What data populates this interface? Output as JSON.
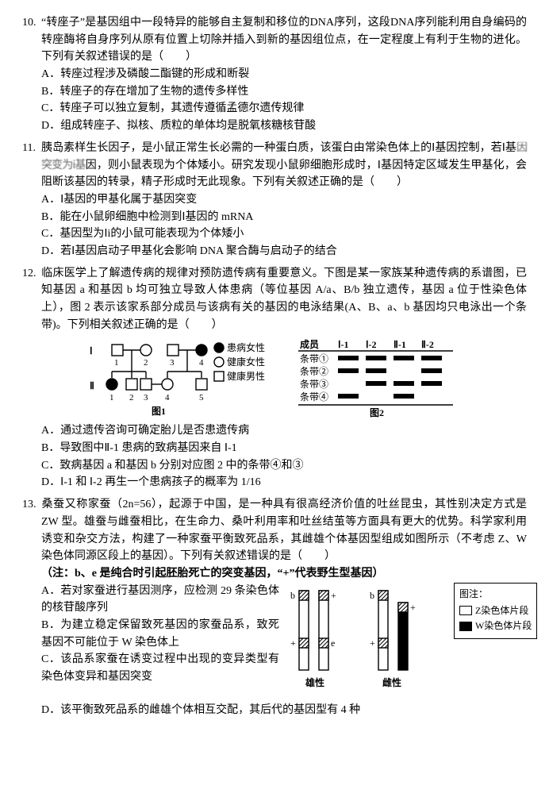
{
  "q10": {
    "num": "10.",
    "stem": "“转座子”是基因组中一段特异的能够自主复制和移位的DNA序列，这段DNA序列能利用自身编码的转座酶将自身序列从原有位置上切除并插入到新的基因组位点，在一定程度上有利于生物的进化。下列有关叙述错误的是（　　）",
    "A": "A．转座过程涉及磷酸二酯键的形成和断裂",
    "B": "B．转座子的存在增加了生物的遗传多样性",
    "C": "C．转座子可以独立复制，其遗传遵循孟德尔遗传规律",
    "D": "D．组成转座子、拟核、质粒的单体均是脱氧核糖核苷酸"
  },
  "q11": {
    "num": "11.",
    "stem_a": "胰岛素样生长因子，是小鼠正常生长必需的一种蛋白质，该蛋白由常染色体上的Ⅰ基因控制，若Ⅰ基",
    "stem_smudge": "因突变为ⅰ基",
    "stem_b": "因，则小鼠表现为个体矮小。研究发现小鼠卵细胞形成时，Ⅰ基因特定区域发生甲基化，会阻断该基因的转录，精子形成时无此现象。下列有关叙述正确的是（　　）",
    "A": "A．Ⅰ基因的甲基化属于基因突变",
    "B": "B．能在小鼠卵细胞中检测到Ⅰ基因的 mRNA",
    "C": "C．基因型为Ⅰi的小鼠可能表现为个体矮小",
    "D": "D．若Ⅰ基因启动子甲基化会影响 DNA 聚合酶与启动子的结合"
  },
  "q12": {
    "num": "12.",
    "stem": "临床医学上了解遗传病的规律对预防遗传病有重要意义。下图是某一家族某种遗传病的系谱图，已知基因 a 和基因 b 均可独立导致人体患病（等位基因 A/a、B/b 独立遗传，基因 a 位于性染色体上），图 2 表示该家系部分成员与该病有关的基因的电泳结果(A、B、a、b 基因均只电泳出一个条带)。下列相关叙述正确的是（　　）",
    "fig1_labels": {
      "I": "Ⅰ",
      "II": "Ⅱ",
      "aff_f": "患病女性",
      "norm_f": "健康女性",
      "norm_m": "健康男性",
      "cap": "图1"
    },
    "fig2": {
      "header": [
        "成员",
        "Ⅰ-1",
        "Ⅰ-2",
        "Ⅱ-1",
        "Ⅱ-2"
      ],
      "rows": [
        "条带①",
        "条带②",
        "条带③",
        "条带④"
      ],
      "cap": "图2",
      "bands": {
        "r1": [
          1,
          1,
          1,
          1
        ],
        "r2": [
          1,
          1,
          0,
          1
        ],
        "r3": [
          0,
          1,
          1,
          1
        ],
        "r4": [
          1,
          0,
          1,
          0
        ]
      }
    },
    "A": "A．通过遗传咨询可确定胎儿是否患遗传病",
    "B": "B．导致图中Ⅱ-1 患病的致病基因来自 Ⅰ-1",
    "C": "C．致病基因 a 和基因 b 分别对应图 2 中的条带④和③",
    "D": "D．Ⅰ-1 和 Ⅰ-2 再生一个患病孩子的概率为 1/16"
  },
  "q13": {
    "num": "13.",
    "stem": "桑蚕又称家蚕（2n=56），起源于中国，是一种具有很高经济价值的吐丝昆虫，其性别决定方式是 ZW 型。雄蚕与雌蚕相比，在生命力、桑叶利用率和吐丝结茧等方面具有更大的优势。科学家利用诱变和杂交方法，构建了一种家蚕平衡致死品系，其雌雄个体基因型组成如图所示（不考虑 Z、W 染色体同源区段上的基因）。下列有关叙述错误的是（　　）",
    "note": "（注：b、e 是纯合时引起胚胎死亡的突变基因，“+”代表野生型基因）",
    "A": "A．若对家蚕进行基因测序，应检测 29 条染色体的核苷酸序列",
    "B": "B．为建立稳定保留致死基因的家蚕品系，致死基因不可能位于 W 染色体上",
    "C": "C．该品系家蚕在诱变过程中出现的变异类型有染色体变异和基因突变",
    "D": "D．该平衡致死品系的雌雄个体相互交配，其后代的基因型有 4 种",
    "fig": {
      "male": "雄性",
      "female": "雌性",
      "legend_title": "图注：",
      "legend_z": "Z染色体片段",
      "legend_w": "W染色体片段"
    }
  }
}
